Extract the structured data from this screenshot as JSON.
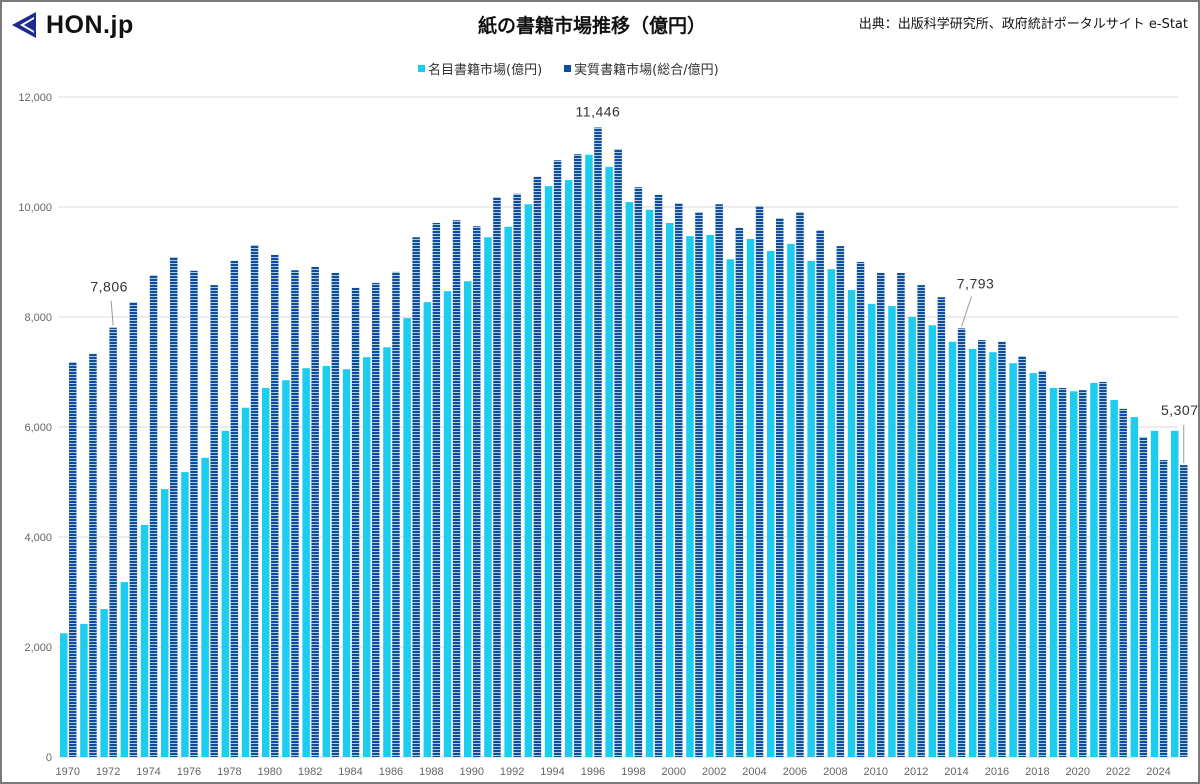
{
  "header": {
    "logo_text": "HON.jp",
    "title": "紙の書籍市場推移（億円）",
    "source": "出典：出版科学研究所、政府統計ポータルサイト e-Stat"
  },
  "legend": {
    "nominal": "名目書籍市場(億円)",
    "real": "実質書籍市場(総合/億円)"
  },
  "colors": {
    "nominal": "#1ccdf0",
    "real": "#0b4f9c",
    "real_stripe": "#ffffff",
    "grid": "#d9d9d9",
    "logo_mark": "#1f2a8c"
  },
  "annotations": [
    {
      "year": 1972,
      "series": "real",
      "label": "7,806"
    },
    {
      "year": 1996,
      "series": "real",
      "label": "11,446"
    },
    {
      "year": 2014,
      "series": "real",
      "label": "7,793"
    },
    {
      "year": 2025,
      "series": "real",
      "label": "5,307"
    }
  ],
  "chart_data": {
    "type": "bar",
    "title": "紙の書籍市場推移（億円）",
    "xlabel": "",
    "ylabel": "",
    "ylim": [
      0,
      12000
    ],
    "yticks": [
      "0",
      "2,000",
      "4,000",
      "6,000",
      "8,000",
      "10,000",
      "12,000"
    ],
    "xtick_labels": [
      "1970",
      "1972",
      "1974",
      "1976",
      "1978",
      "1980",
      "1982",
      "1984",
      "1986",
      "1988",
      "1990",
      "1992",
      "1994",
      "1996",
      "1998",
      "2000",
      "2002",
      "2004",
      "2006",
      "2008",
      "2010",
      "2012",
      "2014",
      "2016",
      "2018",
      "2020",
      "2022",
      "2024"
    ],
    "grid": true,
    "legend_position": "top",
    "categories": [
      1970,
      1971,
      1972,
      1973,
      1974,
      1975,
      1976,
      1977,
      1978,
      1979,
      1980,
      1981,
      1982,
      1983,
      1984,
      1985,
      1986,
      1987,
      1988,
      1989,
      1990,
      1991,
      1992,
      1993,
      1994,
      1995,
      1996,
      1997,
      1998,
      1999,
      2000,
      2001,
      2002,
      2003,
      2004,
      2005,
      2006,
      2007,
      2008,
      2009,
      2010,
      2011,
      2012,
      2013,
      2014,
      2015,
      2016,
      2017,
      2018,
      2019,
      2020,
      2021,
      2022,
      2023,
      2024,
      2025
    ],
    "series": [
      {
        "name": "名目書籍市場(億円)",
        "values": [
          2250,
          2420,
          2690,
          3180,
          4220,
          4870,
          5180,
          5440,
          5930,
          6350,
          6710,
          6850,
          7070,
          7110,
          7050,
          7270,
          7450,
          7980,
          8270,
          8470,
          8650,
          9450,
          9640,
          10050,
          10380,
          10490,
          10950,
          10730,
          10090,
          9950,
          9710,
          9470,
          9490,
          9050,
          9420,
          9200,
          9330,
          9020,
          8870,
          8490,
          8240,
          8200,
          8000,
          7850,
          7550,
          7420,
          7360,
          7160,
          6980,
          6710,
          6650,
          6800,
          6490,
          6180,
          5930,
          5930
        ]
      },
      {
        "name": "実質書籍市場(総合/億円)",
        "values": [
          7180,
          7330,
          7806,
          8270,
          8760,
          9090,
          8840,
          8580,
          9020,
          9310,
          9130,
          8850,
          8910,
          8800,
          8530,
          8620,
          8820,
          9450,
          9710,
          9760,
          9650,
          10180,
          10240,
          10550,
          10850,
          10960,
          11446,
          11050,
          10360,
          10220,
          10070,
          9910,
          10050,
          9620,
          10020,
          9800,
          9910,
          9580,
          9290,
          9000,
          8800,
          8800,
          8580,
          8360,
          7793,
          7580,
          7550,
          7290,
          7020,
          6710,
          6670,
          6820,
          6330,
          5820,
          5400,
          5307
        ]
      }
    ]
  }
}
